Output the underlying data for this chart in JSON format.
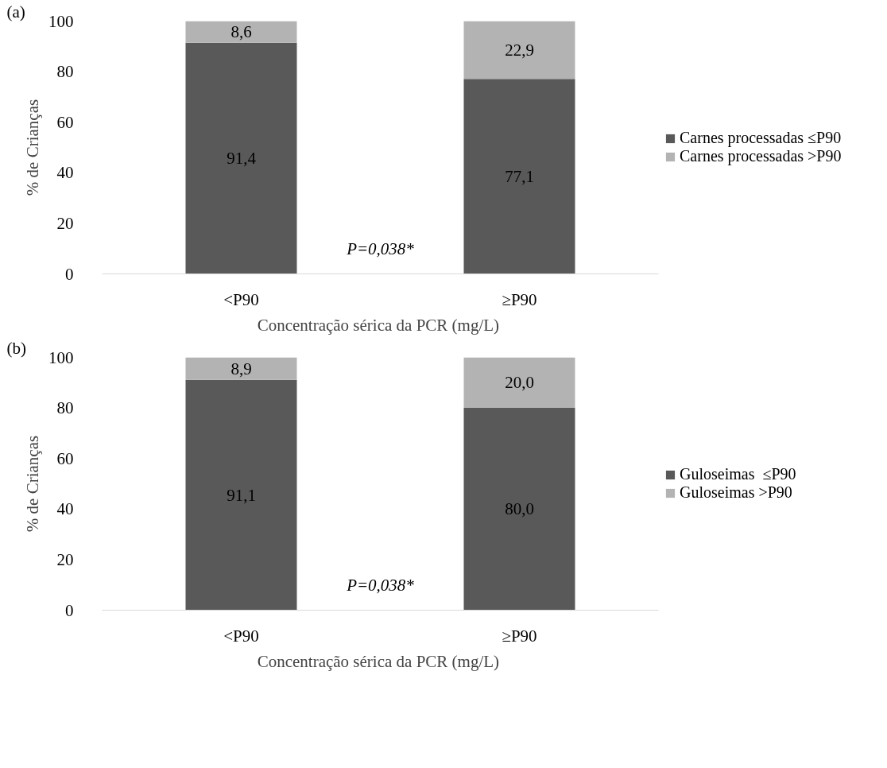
{
  "chart_data": [
    {
      "type": "bar",
      "stacked": true,
      "categories": [
        "<P90",
        "≥P90"
      ],
      "xlabel": "Concentração  sérica da PCR (mg/L)",
      "ylabel": "% de Crianças",
      "ylim": [
        0,
        100
      ],
      "yticks": [
        0,
        20,
        40,
        60,
        80,
        100
      ],
      "grid": false,
      "legend": "right",
      "annotations": [
        "(a)",
        "P=0,038*"
      ],
      "series": [
        {
          "name": "Carnes processadas ≤P90",
          "color": "#595959",
          "values": [
            91.4,
            77.1
          ],
          "value_labels": [
            "91,4",
            "77,1"
          ]
        },
        {
          "name": "Carnes processadas >P90",
          "color": "#b3b3b3",
          "values": [
            8.6,
            22.9
          ],
          "value_labels": [
            "8,6",
            "22,9"
          ]
        }
      ]
    },
    {
      "type": "bar",
      "stacked": true,
      "categories": [
        "<P90",
        "≥P90"
      ],
      "xlabel": "Concentração  sérica da PCR (mg/L)",
      "ylabel": "% de Crianças",
      "ylim": [
        0,
        100
      ],
      "yticks": [
        0,
        20,
        40,
        60,
        80,
        100
      ],
      "grid": false,
      "legend": "right",
      "annotations": [
        "(b)",
        "P=0,038*"
      ],
      "series": [
        {
          "name": "Guloseimas  ≤P90",
          "color": "#595959",
          "values": [
            91.1,
            80.0
          ],
          "value_labels": [
            "91,1",
            "80,0"
          ]
        },
        {
          "name": "Guloseimas >P90",
          "color": "#b3b3b3",
          "values": [
            8.9,
            20.0
          ],
          "value_labels": [
            "8,9",
            "20,0"
          ]
        }
      ]
    }
  ]
}
